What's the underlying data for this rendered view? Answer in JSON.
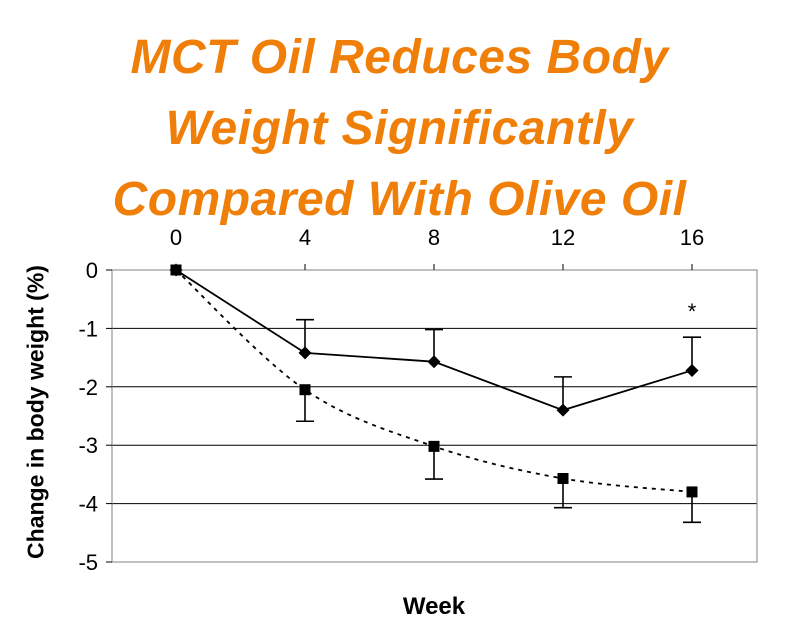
{
  "title_lines": [
    "MCT Oil Reduces Body",
    "Weight Significantly",
    "Compared With Olive Oil"
  ],
  "chart_data": {
    "type": "line",
    "title": "MCT Oil Reduces Body Weight Significantly Compared With Olive Oil",
    "xlabel": "Week",
    "ylabel": "Change in body weight (%)",
    "x": [
      0,
      4,
      8,
      12,
      16
    ],
    "x_ticks": [
      "0",
      "4",
      "8",
      "12",
      "16"
    ],
    "x_axis_position": "top",
    "y_ticks": [
      "0",
      "-1",
      "-2",
      "-3",
      "-4",
      "-5"
    ],
    "ylim": [
      -5,
      0
    ],
    "grid": true,
    "series": [
      {
        "marker": "diamond",
        "line_style": "solid",
        "values": [
          0,
          -1.42,
          -1.57,
          -2.4,
          -1.72
        ],
        "error_up": [
          0,
          0.57,
          0.55,
          0.57,
          0.57
        ]
      },
      {
        "marker": "square",
        "line_style": "dashed",
        "values": [
          0,
          -2.05,
          -3.02,
          -3.57,
          -3.8
        ],
        "error_down": [
          0,
          0.54,
          0.56,
          0.5,
          0.52
        ]
      }
    ],
    "annotations": [
      {
        "x": 16,
        "y": -0.63,
        "text": "*"
      }
    ]
  }
}
